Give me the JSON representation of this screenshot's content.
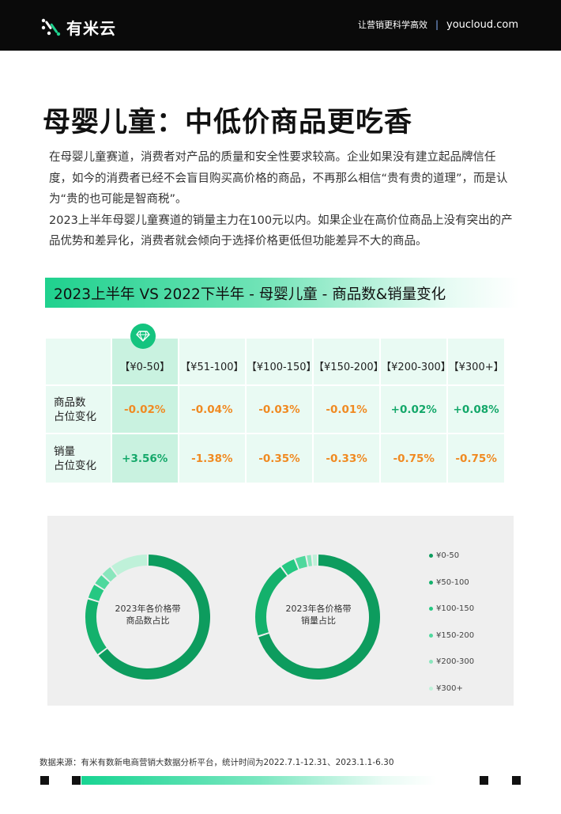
{
  "header": {
    "logo_text": "有米云",
    "slogan": "让营销更科学高效",
    "separator": "|",
    "url": "youcloud.com"
  },
  "title": "母婴儿童：中低价商品更吃香",
  "paragraphs": [
    "在母婴儿童赛道，消费者对产品的质量和安全性要求较高。企业如果没有建立起品牌信任度，如今的消费者已经不会盲目购买高价格的商品，不再那么相信“贵有贵的道理”，而是认为“贵的也可能是智商税”。",
    "2023上半年母婴儿童赛道的销量主力在100元以内。如果企业在高价位商品上没有突出的产品优势和差异化，消费者就会倾向于选择价格更低但功能差异不大的商品。"
  ],
  "section_title": "2023上半年 VS 2022下半年 - 母婴儿童 - 商品数&销量变化",
  "table": {
    "headers": [
      "【¥0-50】",
      "【¥51-100】",
      "【¥100-150】",
      "【¥150-200】",
      "【¥200-300】",
      "【¥300+】"
    ],
    "rows": [
      {
        "label_line1": "商品数",
        "label_line2": "占位变化",
        "values": [
          "-0.02%",
          "-0.04%",
          "-0.03%",
          "-0.01%",
          "+0.02%",
          "+0.08%"
        ]
      },
      {
        "label_line1": "销量",
        "label_line2": "占位变化",
        "values": [
          "+3.56%",
          "-1.38%",
          "-0.35%",
          "-0.33%",
          "-0.75%",
          "-0.75%"
        ]
      }
    ],
    "highlight_icon": "diamond-icon"
  },
  "chart_data": [
    {
      "type": "pie",
      "title": "2023年各价格带商品数占比",
      "categories": [
        "¥0-50",
        "¥50-100",
        "¥100-150",
        "¥150-200",
        "¥200-300",
        "¥300+"
      ],
      "values": [
        64,
        15,
        4,
        3,
        3,
        10
      ]
    },
    {
      "type": "pie",
      "title": "2023年各价格带销量占比",
      "categories": [
        "¥0-50",
        "¥50-100",
        "¥100-150",
        "¥150-200",
        "¥200-300",
        "¥300+"
      ],
      "values": [
        70,
        20,
        4,
        3,
        1.5,
        1.5
      ]
    }
  ],
  "donut_labels": {
    "chart1_line1": "2023年各价格带",
    "chart1_line2": "商品数占比",
    "chart2_line1": "2023年各价格带",
    "chart2_line2": "销量占比"
  },
  "legend": [
    "¥0-50",
    "¥50-100",
    "¥100-150",
    "¥150-200",
    "¥200-300",
    "¥300+"
  ],
  "colors": {
    "accent": "#14c47f",
    "negative": "#f08a22",
    "positive": "#14a86a",
    "slices": [
      "#0d9c5e",
      "#14b16c",
      "#25c882",
      "#4fd89d",
      "#8ae6bd",
      "#bff1d9"
    ]
  },
  "source": "数据来源：有米有数新电商营销大数据分析平台，统计时间为2022.7.1-12.31、2023.1.1-6.30"
}
